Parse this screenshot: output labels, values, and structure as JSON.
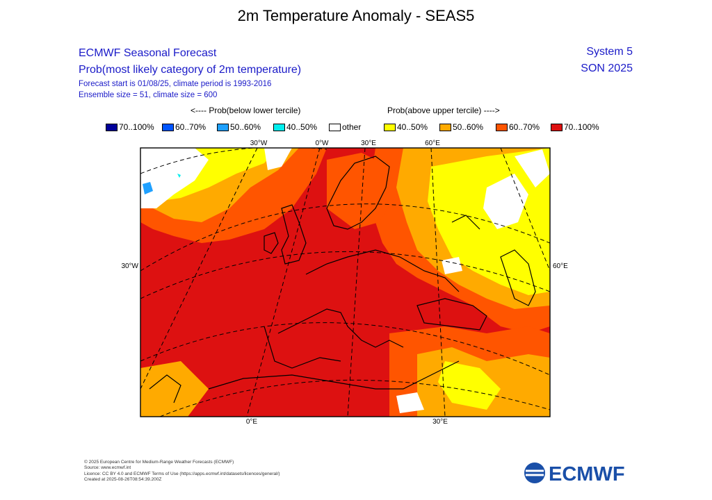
{
  "title": "2m Temperature Anomaly - SEAS5",
  "header": {
    "line1": "ECMWF Seasonal Forecast",
    "line2": "Prob(most likely category of 2m temperature)",
    "line3": "Forecast start is 01/08/25, climate period is 1993-2016",
    "line4": "Ensemble size = 51, climate size = 600",
    "system": "System 5",
    "season": "SON 2025"
  },
  "legend": {
    "below_note": "<---- Prob(below lower tercile)",
    "above_note": "Prob(above upper tercile) ---->",
    "items": [
      {
        "label": "70..100%",
        "color": "#000099"
      },
      {
        "label": "60..70%",
        "color": "#0055ff"
      },
      {
        "label": "50..60%",
        "color": "#1ea0ff"
      },
      {
        "label": "40..50%",
        "color": "#00eeee"
      },
      {
        "label": "other",
        "color": "#ffffff"
      },
      {
        "label": "40..50%",
        "color": "#ffff00"
      },
      {
        "label": "50..60%",
        "color": "#ffaa00"
      },
      {
        "label": "60..70%",
        "color": "#ff5500"
      },
      {
        "label": "70..100%",
        "color": "#dd1111"
      }
    ]
  },
  "map": {
    "top_labels": [
      "30°W",
      "0°W",
      "30°E",
      "60°E"
    ],
    "bottom_labels": [
      "0°E",
      "30°E"
    ],
    "left_label": "30°W",
    "right_label": "60°E",
    "colors": {
      "red": "#dd1111",
      "orange_red": "#ff5500",
      "orange": "#ffaa00",
      "yellow": "#ffff00",
      "white": "#ffffff",
      "light_blue": "#1ea0ff",
      "cyan": "#00eeee"
    }
  },
  "footer": {
    "line1": "© 2025 European Centre for Medium-Range Weather Forecasts (ECMWF)",
    "line2": "Source: www.ecmwf.int",
    "line3": "Licence: CC BY 4.0 and ECMWF Terms of Use (https://apps.ecmwf.int/datasets/licences/general/)",
    "line4": "Created at 2025-08-26T08:54:39.200Z"
  },
  "logo": {
    "text": "ECMWF",
    "color": "#1a4fa8"
  }
}
